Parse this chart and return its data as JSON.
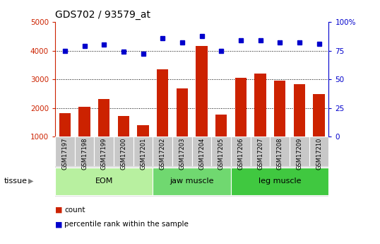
{
  "title": "GDS702 / 93579_at",
  "samples": [
    "GSM17197",
    "GSM17198",
    "GSM17199",
    "GSM17200",
    "GSM17201",
    "GSM17202",
    "GSM17203",
    "GSM17204",
    "GSM17205",
    "GSM17206",
    "GSM17207",
    "GSM17208",
    "GSM17209",
    "GSM17210"
  ],
  "counts": [
    1820,
    2040,
    2310,
    1720,
    1410,
    3340,
    2680,
    4170,
    1760,
    3060,
    3200,
    2950,
    2840,
    2480
  ],
  "percentiles": [
    75,
    79,
    80,
    74,
    72,
    86,
    82,
    88,
    75,
    84,
    84,
    82,
    82,
    81
  ],
  "groups": [
    {
      "label": "EOM",
      "start": 0,
      "end": 5,
      "color": "#b8f0a0"
    },
    {
      "label": "jaw muscle",
      "start": 5,
      "end": 9,
      "color": "#70d870"
    },
    {
      "label": "leg muscle",
      "start": 9,
      "end": 14,
      "color": "#40c840"
    }
  ],
  "bar_color": "#cc2200",
  "dot_color": "#0000cc",
  "left_axis_color": "#cc2200",
  "right_axis_color": "#0000cc",
  "ylim_left": [
    1000,
    5000
  ],
  "ylim_right": [
    0,
    100
  ],
  "yticks_left": [
    1000,
    2000,
    3000,
    4000,
    5000
  ],
  "yticks_right": [
    0,
    25,
    50,
    75,
    100
  ],
  "grid_values": [
    2000,
    3000,
    4000
  ],
  "tissue_label": "tissue",
  "legend_count": "count",
  "legend_pct": "percentile rank within the sample",
  "bg_color": "#ffffff",
  "tick_bg_color": "#c8c8c8",
  "figsize": [
    5.38,
    3.45
  ],
  "dpi": 100
}
